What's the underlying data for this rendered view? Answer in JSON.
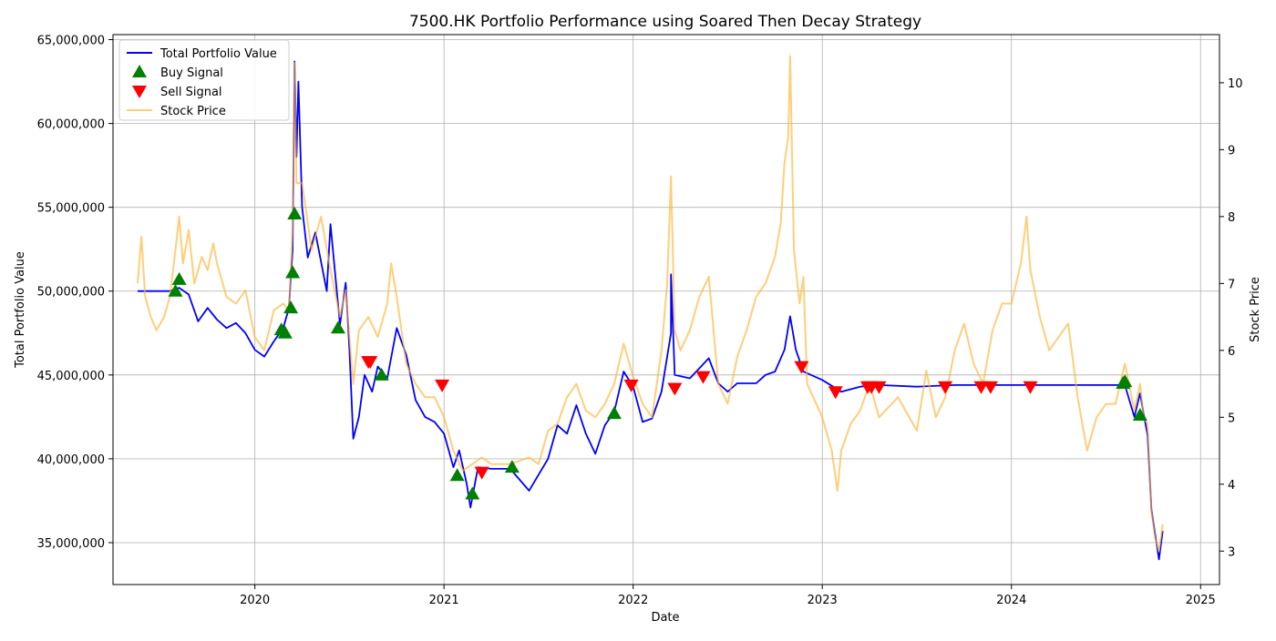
{
  "chart_data": {
    "type": "line",
    "title": "7500.HK Portfolio Performance using Soared Then Decay Strategy",
    "xlabel": "Date",
    "ylabel_left": "Total Portfolio Value",
    "ylabel_right": "Stock Price",
    "x_range": [
      2019.25,
      2025.1
    ],
    "y_left_range": [
      32500000,
      65300000
    ],
    "y_right_range": [
      2.5,
      10.72
    ],
    "x_ticks": [
      {
        "value": 2020,
        "label": "2020"
      },
      {
        "value": 2021,
        "label": "2021"
      },
      {
        "value": 2022,
        "label": "2022"
      },
      {
        "value": 2023,
        "label": "2023"
      },
      {
        "value": 2024,
        "label": "2024"
      },
      {
        "value": 2025,
        "label": "2025"
      }
    ],
    "y_left_ticks": [
      {
        "value": 35000000,
        "label": "35,000,000"
      },
      {
        "value": 40000000,
        "label": "40,000,000"
      },
      {
        "value": 45000000,
        "label": "45,000,000"
      },
      {
        "value": 50000000,
        "label": "50,000,000"
      },
      {
        "value": 55000000,
        "label": "55,000,000"
      },
      {
        "value": 60000000,
        "label": "60,000,000"
      },
      {
        "value": 65000000,
        "label": "65,000,000"
      }
    ],
    "y_right_ticks": [
      {
        "value": 3,
        "label": "3"
      },
      {
        "value": 4,
        "label": "4"
      },
      {
        "value": 5,
        "label": "5"
      },
      {
        "value": 6,
        "label": "6"
      },
      {
        "value": 7,
        "label": "7"
      },
      {
        "value": 8,
        "label": "8"
      },
      {
        "value": 9,
        "label": "9"
      },
      {
        "value": 10,
        "label": "10"
      }
    ],
    "grid": true,
    "legend_position": "top-left",
    "legend": [
      {
        "label": "Total Portfolio Value",
        "kind": "line",
        "color": "#0000ff"
      },
      {
        "label": "Buy Signal",
        "kind": "up-triangle",
        "color": "#008000"
      },
      {
        "label": "Sell Signal",
        "kind": "down-triangle",
        "color": "#ff0000"
      },
      {
        "label": "Stock Price",
        "kind": "line",
        "color": "#ffb433"
      }
    ],
    "series": [
      {
        "name": "Total Portfolio Value",
        "axis": "left",
        "color": "#0000ff",
        "points": [
          [
            2019.38,
            50000000
          ],
          [
            2019.55,
            50000000
          ],
          [
            2019.6,
            50200000
          ],
          [
            2019.65,
            49800000
          ],
          [
            2019.7,
            48200000
          ],
          [
            2019.75,
            49000000
          ],
          [
            2019.8,
            48300000
          ],
          [
            2019.85,
            47800000
          ],
          [
            2019.9,
            48100000
          ],
          [
            2019.95,
            47500000
          ],
          [
            2020.0,
            46500000
          ],
          [
            2020.05,
            46100000
          ],
          [
            2020.1,
            47000000
          ],
          [
            2020.15,
            47800000
          ],
          [
            2020.18,
            49000000
          ],
          [
            2020.2,
            52500000
          ],
          [
            2020.21,
            63700000
          ],
          [
            2020.22,
            58000000
          ],
          [
            2020.23,
            62500000
          ],
          [
            2020.25,
            55000000
          ],
          [
            2020.28,
            52000000
          ],
          [
            2020.32,
            53500000
          ],
          [
            2020.38,
            50000000
          ],
          [
            2020.4,
            54000000
          ],
          [
            2020.45,
            48000000
          ],
          [
            2020.48,
            50500000
          ],
          [
            2020.5,
            46500000
          ],
          [
            2020.52,
            41200000
          ],
          [
            2020.55,
            42500000
          ],
          [
            2020.58,
            45000000
          ],
          [
            2020.62,
            44000000
          ],
          [
            2020.65,
            45500000
          ],
          [
            2020.7,
            44800000
          ],
          [
            2020.75,
            47800000
          ],
          [
            2020.8,
            46200000
          ],
          [
            2020.85,
            43500000
          ],
          [
            2020.9,
            42500000
          ],
          [
            2020.95,
            42200000
          ],
          [
            2021.0,
            41500000
          ],
          [
            2021.05,
            39500000
          ],
          [
            2021.08,
            40500000
          ],
          [
            2021.12,
            38500000
          ],
          [
            2021.14,
            37100000
          ],
          [
            2021.18,
            39500000
          ],
          [
            2021.25,
            39400000
          ],
          [
            2021.35,
            39400000
          ],
          [
            2021.45,
            38100000
          ],
          [
            2021.55,
            40000000
          ],
          [
            2021.6,
            42000000
          ],
          [
            2021.65,
            41500000
          ],
          [
            2021.7,
            43200000
          ],
          [
            2021.75,
            41500000
          ],
          [
            2021.8,
            40300000
          ],
          [
            2021.85,
            42000000
          ],
          [
            2021.9,
            42800000
          ],
          [
            2021.95,
            45200000
          ],
          [
            2022.0,
            44300000
          ],
          [
            2022.05,
            42200000
          ],
          [
            2022.1,
            42400000
          ],
          [
            2022.15,
            44000000
          ],
          [
            2022.2,
            47500000
          ],
          [
            2022.2,
            51000000
          ],
          [
            2022.22,
            45000000
          ],
          [
            2022.3,
            44800000
          ],
          [
            2022.35,
            45400000
          ],
          [
            2022.4,
            46000000
          ],
          [
            2022.45,
            44500000
          ],
          [
            2022.5,
            44000000
          ],
          [
            2022.55,
            44500000
          ],
          [
            2022.6,
            44500000
          ],
          [
            2022.65,
            44500000
          ],
          [
            2022.7,
            45000000
          ],
          [
            2022.75,
            45200000
          ],
          [
            2022.8,
            46500000
          ],
          [
            2022.83,
            48500000
          ],
          [
            2022.86,
            46500000
          ],
          [
            2022.9,
            45200000
          ],
          [
            2023.0,
            44700000
          ],
          [
            2023.1,
            44000000
          ],
          [
            2023.2,
            44300000
          ],
          [
            2023.3,
            44400000
          ],
          [
            2023.5,
            44300000
          ],
          [
            2023.7,
            44400000
          ],
          [
            2024.0,
            44400000
          ],
          [
            2024.3,
            44400000
          ],
          [
            2024.55,
            44400000
          ],
          [
            2024.6,
            44400000
          ],
          [
            2024.65,
            42500000
          ],
          [
            2024.68,
            43900000
          ],
          [
            2024.72,
            41400000
          ],
          [
            2024.74,
            37000000
          ],
          [
            2024.76,
            35500000
          ],
          [
            2024.78,
            34000000
          ],
          [
            2024.8,
            35700000
          ]
        ]
      },
      {
        "name": "Stock Price",
        "axis": "right",
        "color": "#ffb433",
        "points": [
          [
            2019.38,
            7.0
          ],
          [
            2019.4,
            7.7
          ],
          [
            2019.42,
            6.8
          ],
          [
            2019.45,
            6.5
          ],
          [
            2019.48,
            6.3
          ],
          [
            2019.52,
            6.5
          ],
          [
            2019.55,
            6.8
          ],
          [
            2019.58,
            7.5
          ],
          [
            2019.6,
            8.0
          ],
          [
            2019.62,
            7.3
          ],
          [
            2019.65,
            7.8
          ],
          [
            2019.68,
            7.0
          ],
          [
            2019.72,
            7.4
          ],
          [
            2019.75,
            7.2
          ],
          [
            2019.78,
            7.6
          ],
          [
            2019.8,
            7.3
          ],
          [
            2019.85,
            6.8
          ],
          [
            2019.9,
            6.7
          ],
          [
            2019.95,
            6.9
          ],
          [
            2020.0,
            6.2
          ],
          [
            2020.05,
            6.0
          ],
          [
            2020.1,
            6.6
          ],
          [
            2020.15,
            6.7
          ],
          [
            2020.18,
            6.6
          ],
          [
            2020.2,
            7.8
          ],
          [
            2020.21,
            10.3
          ],
          [
            2020.22,
            8.5
          ],
          [
            2020.25,
            8.5
          ],
          [
            2020.3,
            7.5
          ],
          [
            2020.35,
            8.0
          ],
          [
            2020.4,
            7.2
          ],
          [
            2020.45,
            6.5
          ],
          [
            2020.48,
            6.9
          ],
          [
            2020.5,
            6.2
          ],
          [
            2020.52,
            5.5
          ],
          [
            2020.55,
            6.3
          ],
          [
            2020.6,
            6.5
          ],
          [
            2020.65,
            6.2
          ],
          [
            2020.7,
            6.7
          ],
          [
            2020.72,
            7.3
          ],
          [
            2020.75,
            6.8
          ],
          [
            2020.8,
            5.8
          ],
          [
            2020.85,
            5.5
          ],
          [
            2020.9,
            5.3
          ],
          [
            2020.95,
            5.3
          ],
          [
            2021.0,
            5.0
          ],
          [
            2021.05,
            4.5
          ],
          [
            2021.1,
            4.2
          ],
          [
            2021.15,
            4.3
          ],
          [
            2021.2,
            4.4
          ],
          [
            2021.25,
            4.3
          ],
          [
            2021.35,
            4.3
          ],
          [
            2021.45,
            4.4
          ],
          [
            2021.5,
            4.3
          ],
          [
            2021.55,
            4.8
          ],
          [
            2021.6,
            4.9
          ],
          [
            2021.65,
            5.3
          ],
          [
            2021.7,
            5.5
          ],
          [
            2021.75,
            5.1
          ],
          [
            2021.8,
            5.0
          ],
          [
            2021.85,
            5.2
          ],
          [
            2021.9,
            5.5
          ],
          [
            2021.95,
            6.1
          ],
          [
            2022.0,
            5.6
          ],
          [
            2022.05,
            5.2
          ],
          [
            2022.1,
            5.0
          ],
          [
            2022.15,
            6.0
          ],
          [
            2022.18,
            7.0
          ],
          [
            2022.2,
            8.6
          ],
          [
            2022.22,
            6.3
          ],
          [
            2022.25,
            6.0
          ],
          [
            2022.3,
            6.3
          ],
          [
            2022.35,
            6.8
          ],
          [
            2022.4,
            7.1
          ],
          [
            2022.45,
            5.5
          ],
          [
            2022.5,
            5.2
          ],
          [
            2022.55,
            5.9
          ],
          [
            2022.6,
            6.3
          ],
          [
            2022.65,
            6.8
          ],
          [
            2022.7,
            7.0
          ],
          [
            2022.75,
            7.4
          ],
          [
            2022.78,
            7.9
          ],
          [
            2022.8,
            8.8
          ],
          [
            2022.82,
            9.2
          ],
          [
            2022.83,
            10.4
          ],
          [
            2022.85,
            7.5
          ],
          [
            2022.88,
            6.7
          ],
          [
            2022.9,
            7.1
          ],
          [
            2022.92,
            5.5
          ],
          [
            2023.0,
            5.0
          ],
          [
            2023.05,
            4.5
          ],
          [
            2023.08,
            3.9
          ],
          [
            2023.1,
            4.5
          ],
          [
            2023.15,
            4.9
          ],
          [
            2023.2,
            5.1
          ],
          [
            2023.25,
            5.5
          ],
          [
            2023.3,
            5.0
          ],
          [
            2023.4,
            5.3
          ],
          [
            2023.5,
            4.8
          ],
          [
            2023.55,
            5.7
          ],
          [
            2023.6,
            5.0
          ],
          [
            2023.65,
            5.3
          ],
          [
            2023.7,
            6.0
          ],
          [
            2023.75,
            6.4
          ],
          [
            2023.8,
            5.8
          ],
          [
            2023.85,
            5.5
          ],
          [
            2023.9,
            6.3
          ],
          [
            2023.95,
            6.7
          ],
          [
            2024.0,
            6.7
          ],
          [
            2024.05,
            7.3
          ],
          [
            2024.08,
            8.0
          ],
          [
            2024.1,
            7.2
          ],
          [
            2024.15,
            6.5
          ],
          [
            2024.2,
            6.0
          ],
          [
            2024.25,
            6.2
          ],
          [
            2024.3,
            6.4
          ],
          [
            2024.35,
            5.3
          ],
          [
            2024.4,
            4.5
          ],
          [
            2024.45,
            5.0
          ],
          [
            2024.5,
            5.2
          ],
          [
            2024.55,
            5.2
          ],
          [
            2024.6,
            5.8
          ],
          [
            2024.65,
            5.1
          ],
          [
            2024.68,
            5.5
          ],
          [
            2024.7,
            5.0
          ],
          [
            2024.72,
            4.9
          ],
          [
            2024.74,
            3.6
          ],
          [
            2024.76,
            3.2
          ],
          [
            2024.78,
            3.0
          ],
          [
            2024.8,
            3.4
          ]
        ]
      }
    ],
    "buy_signals": [
      [
        2019.58,
        50000000
      ],
      [
        2019.6,
        50700000
      ],
      [
        2020.14,
        47700000
      ],
      [
        2020.16,
        47500000
      ],
      [
        2020.19,
        49000000
      ],
      [
        2020.2,
        51100000
      ],
      [
        2020.21,
        54600000
      ],
      [
        2020.44,
        47800000
      ],
      [
        2020.67,
        45000000
      ],
      [
        2021.07,
        39000000
      ],
      [
        2021.15,
        37900000
      ],
      [
        2021.36,
        39500000
      ],
      [
        2021.9,
        42700000
      ],
      [
        2024.59,
        44500000
      ],
      [
        2024.6,
        44600000
      ],
      [
        2024.68,
        42600000
      ]
    ],
    "sell_signals": [
      [
        2020.6,
        45800000
      ],
      [
        2020.61,
        45800000
      ],
      [
        2020.99,
        44400000
      ],
      [
        2021.2,
        39200000
      ],
      [
        2021.99,
        44400000
      ],
      [
        2022.22,
        44200000
      ],
      [
        2022.37,
        44900000
      ],
      [
        2022.89,
        45500000
      ],
      [
        2023.07,
        44000000
      ],
      [
        2023.24,
        44300000
      ],
      [
        2023.26,
        44300000
      ],
      [
        2023.3,
        44300000
      ],
      [
        2023.65,
        44300000
      ],
      [
        2023.84,
        44300000
      ],
      [
        2023.89,
        44300000
      ],
      [
        2024.1,
        44300000
      ]
    ]
  }
}
